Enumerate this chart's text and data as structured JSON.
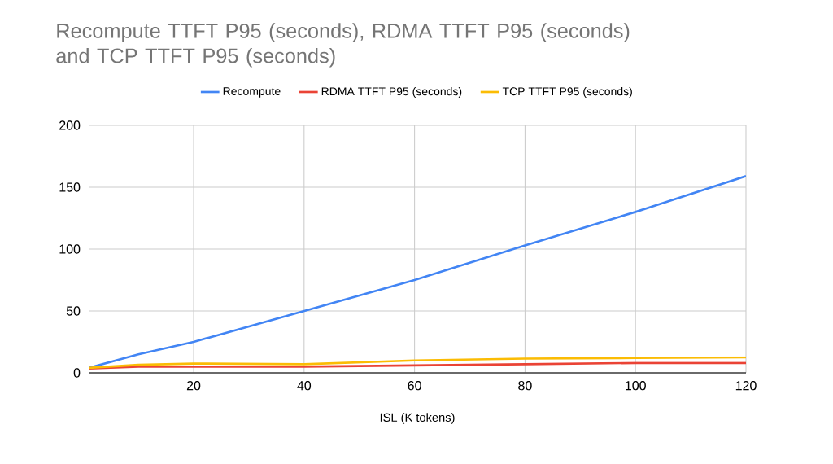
{
  "chart_data": {
    "type": "line",
    "title": "Recompute TTFT P95 (seconds), RDMA TTFT P95 (seconds) and TCP TTFT P95 (seconds)",
    "xlabel": "ISL (K tokens)",
    "x": [
      1,
      10,
      20,
      40,
      60,
      80,
      100,
      120
    ],
    "series": [
      {
        "name": "Recompute",
        "color": "#4285f4",
        "values": [
          4,
          15,
          25,
          50,
          75,
          103,
          130,
          159
        ]
      },
      {
        "name": "RDMA TTFT P95 (seconds)",
        "color": "#ea4335",
        "values": [
          3.5,
          5,
          5,
          5,
          6,
          7,
          8,
          8
        ]
      },
      {
        "name": "TCP TTFT P95 (seconds)",
        "color": "#fbbc04",
        "values": [
          4,
          6.5,
          7.5,
          7,
          10,
          11.5,
          12,
          12.5
        ]
      }
    ],
    "xlim": [
      1,
      120
    ],
    "ylim": [
      0,
      200
    ],
    "xticks": [
      20,
      40,
      60,
      80,
      100,
      120
    ],
    "yticks": [
      0,
      50,
      100,
      150,
      200
    ],
    "grid": true,
    "legend": "top",
    "marker": "none",
    "line_style": "solid"
  }
}
